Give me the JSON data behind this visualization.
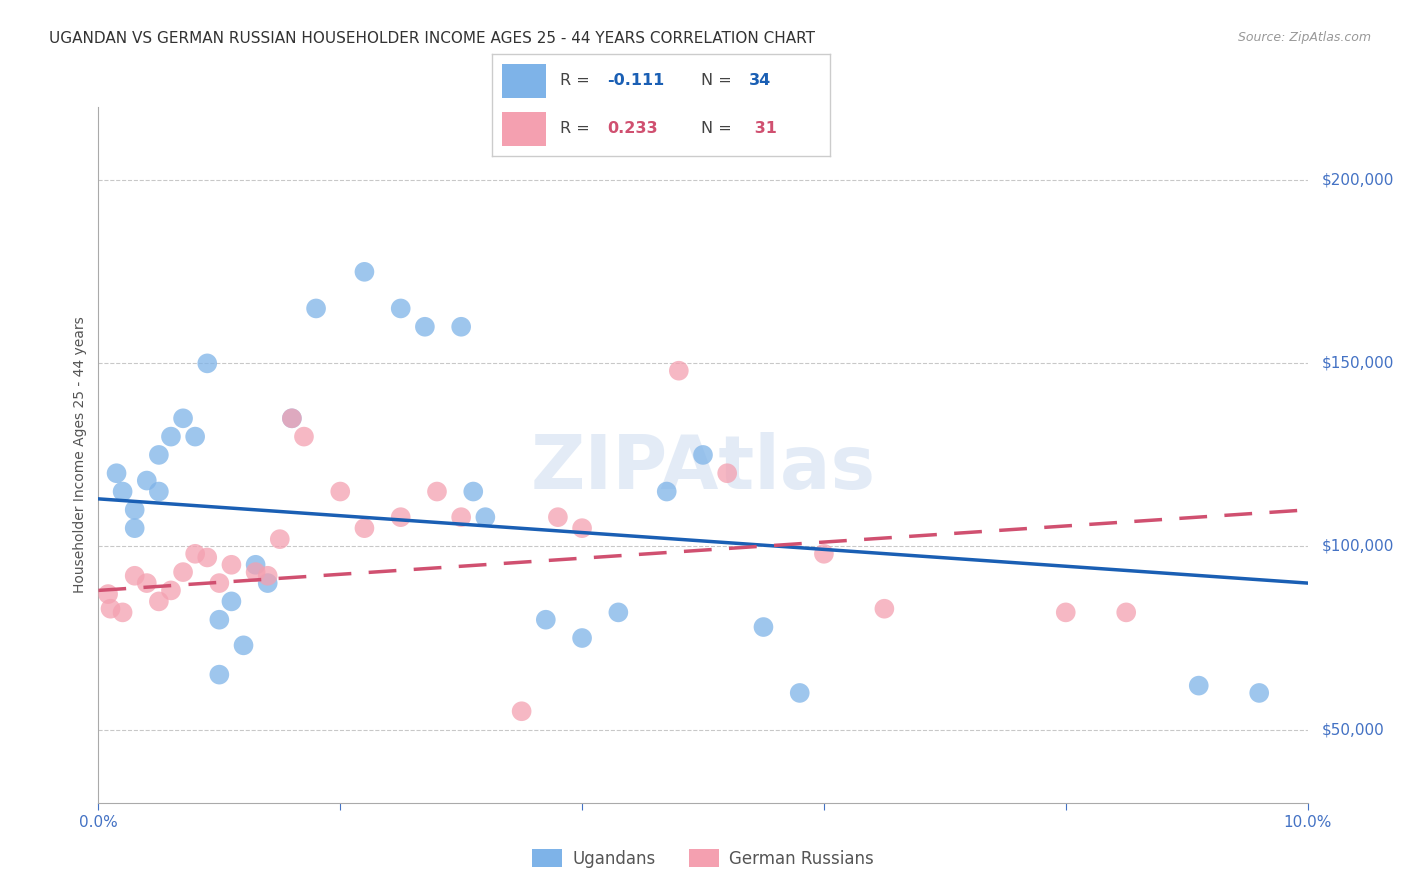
{
  "title": "UGANDAN VS GERMAN RUSSIAN HOUSEHOLDER INCOME AGES 25 - 44 YEARS CORRELATION CHART",
  "source": "Source: ZipAtlas.com",
  "ylabel": "Householder Income Ages 25 - 44 years",
  "watermark": "ZIPAtlas",
  "xlim": [
    0.0,
    0.1
  ],
  "ylim": [
    30000,
    220000
  ],
  "xticks": [
    0.0,
    0.02,
    0.04,
    0.06,
    0.08,
    0.1
  ],
  "xticklabels": [
    "0.0%",
    "",
    "",
    "",
    "",
    "10.0%"
  ],
  "ytick_positions": [
    50000,
    100000,
    150000,
    200000
  ],
  "ytick_labels": [
    "$50,000",
    "$100,000",
    "$150,000",
    "$200,000"
  ],
  "ugandan_color": "#7EB3E8",
  "german_russian_color": "#F4A0B0",
  "trend_ugandan_color": "#1A5FB4",
  "trend_german_russian_color": "#D05070",
  "ugandan_points": [
    [
      0.0015,
      120000
    ],
    [
      0.002,
      115000
    ],
    [
      0.003,
      110000
    ],
    [
      0.003,
      105000
    ],
    [
      0.004,
      118000
    ],
    [
      0.005,
      125000
    ],
    [
      0.005,
      115000
    ],
    [
      0.006,
      130000
    ],
    [
      0.007,
      135000
    ],
    [
      0.008,
      130000
    ],
    [
      0.009,
      150000
    ],
    [
      0.01,
      80000
    ],
    [
      0.011,
      85000
    ],
    [
      0.013,
      95000
    ],
    [
      0.014,
      90000
    ],
    [
      0.016,
      135000
    ],
    [
      0.018,
      165000
    ],
    [
      0.022,
      175000
    ],
    [
      0.025,
      165000
    ],
    [
      0.027,
      160000
    ],
    [
      0.03,
      160000
    ],
    [
      0.031,
      115000
    ],
    [
      0.032,
      108000
    ],
    [
      0.037,
      80000
    ],
    [
      0.04,
      75000
    ],
    [
      0.043,
      82000
    ],
    [
      0.047,
      115000
    ],
    [
      0.05,
      125000
    ],
    [
      0.055,
      78000
    ],
    [
      0.058,
      60000
    ],
    [
      0.01,
      65000
    ],
    [
      0.012,
      73000
    ],
    [
      0.091,
      62000
    ],
    [
      0.096,
      60000
    ]
  ],
  "german_russian_points": [
    [
      0.0008,
      87000
    ],
    [
      0.001,
      83000
    ],
    [
      0.002,
      82000
    ],
    [
      0.003,
      92000
    ],
    [
      0.004,
      90000
    ],
    [
      0.005,
      85000
    ],
    [
      0.006,
      88000
    ],
    [
      0.007,
      93000
    ],
    [
      0.008,
      98000
    ],
    [
      0.009,
      97000
    ],
    [
      0.01,
      90000
    ],
    [
      0.011,
      95000
    ],
    [
      0.013,
      93000
    ],
    [
      0.014,
      92000
    ],
    [
      0.015,
      102000
    ],
    [
      0.016,
      135000
    ],
    [
      0.017,
      130000
    ],
    [
      0.02,
      115000
    ],
    [
      0.022,
      105000
    ],
    [
      0.025,
      108000
    ],
    [
      0.028,
      115000
    ],
    [
      0.03,
      108000
    ],
    [
      0.035,
      55000
    ],
    [
      0.038,
      108000
    ],
    [
      0.04,
      105000
    ],
    [
      0.048,
      148000
    ],
    [
      0.052,
      120000
    ],
    [
      0.06,
      98000
    ],
    [
      0.065,
      83000
    ],
    [
      0.08,
      82000
    ],
    [
      0.085,
      82000
    ]
  ],
  "title_fontsize": 11,
  "axis_label_fontsize": 10,
  "tick_fontsize": 11,
  "source_fontsize": 9,
  "axis_color": "#4472C4",
  "grid_color": "#BBBBBB",
  "background_color": "#FFFFFF",
  "legend_box_color": "#CCCCCC",
  "ugandan_R": "-0.111",
  "ugandan_N": "34",
  "german_R": "0.233",
  "german_N": "31"
}
